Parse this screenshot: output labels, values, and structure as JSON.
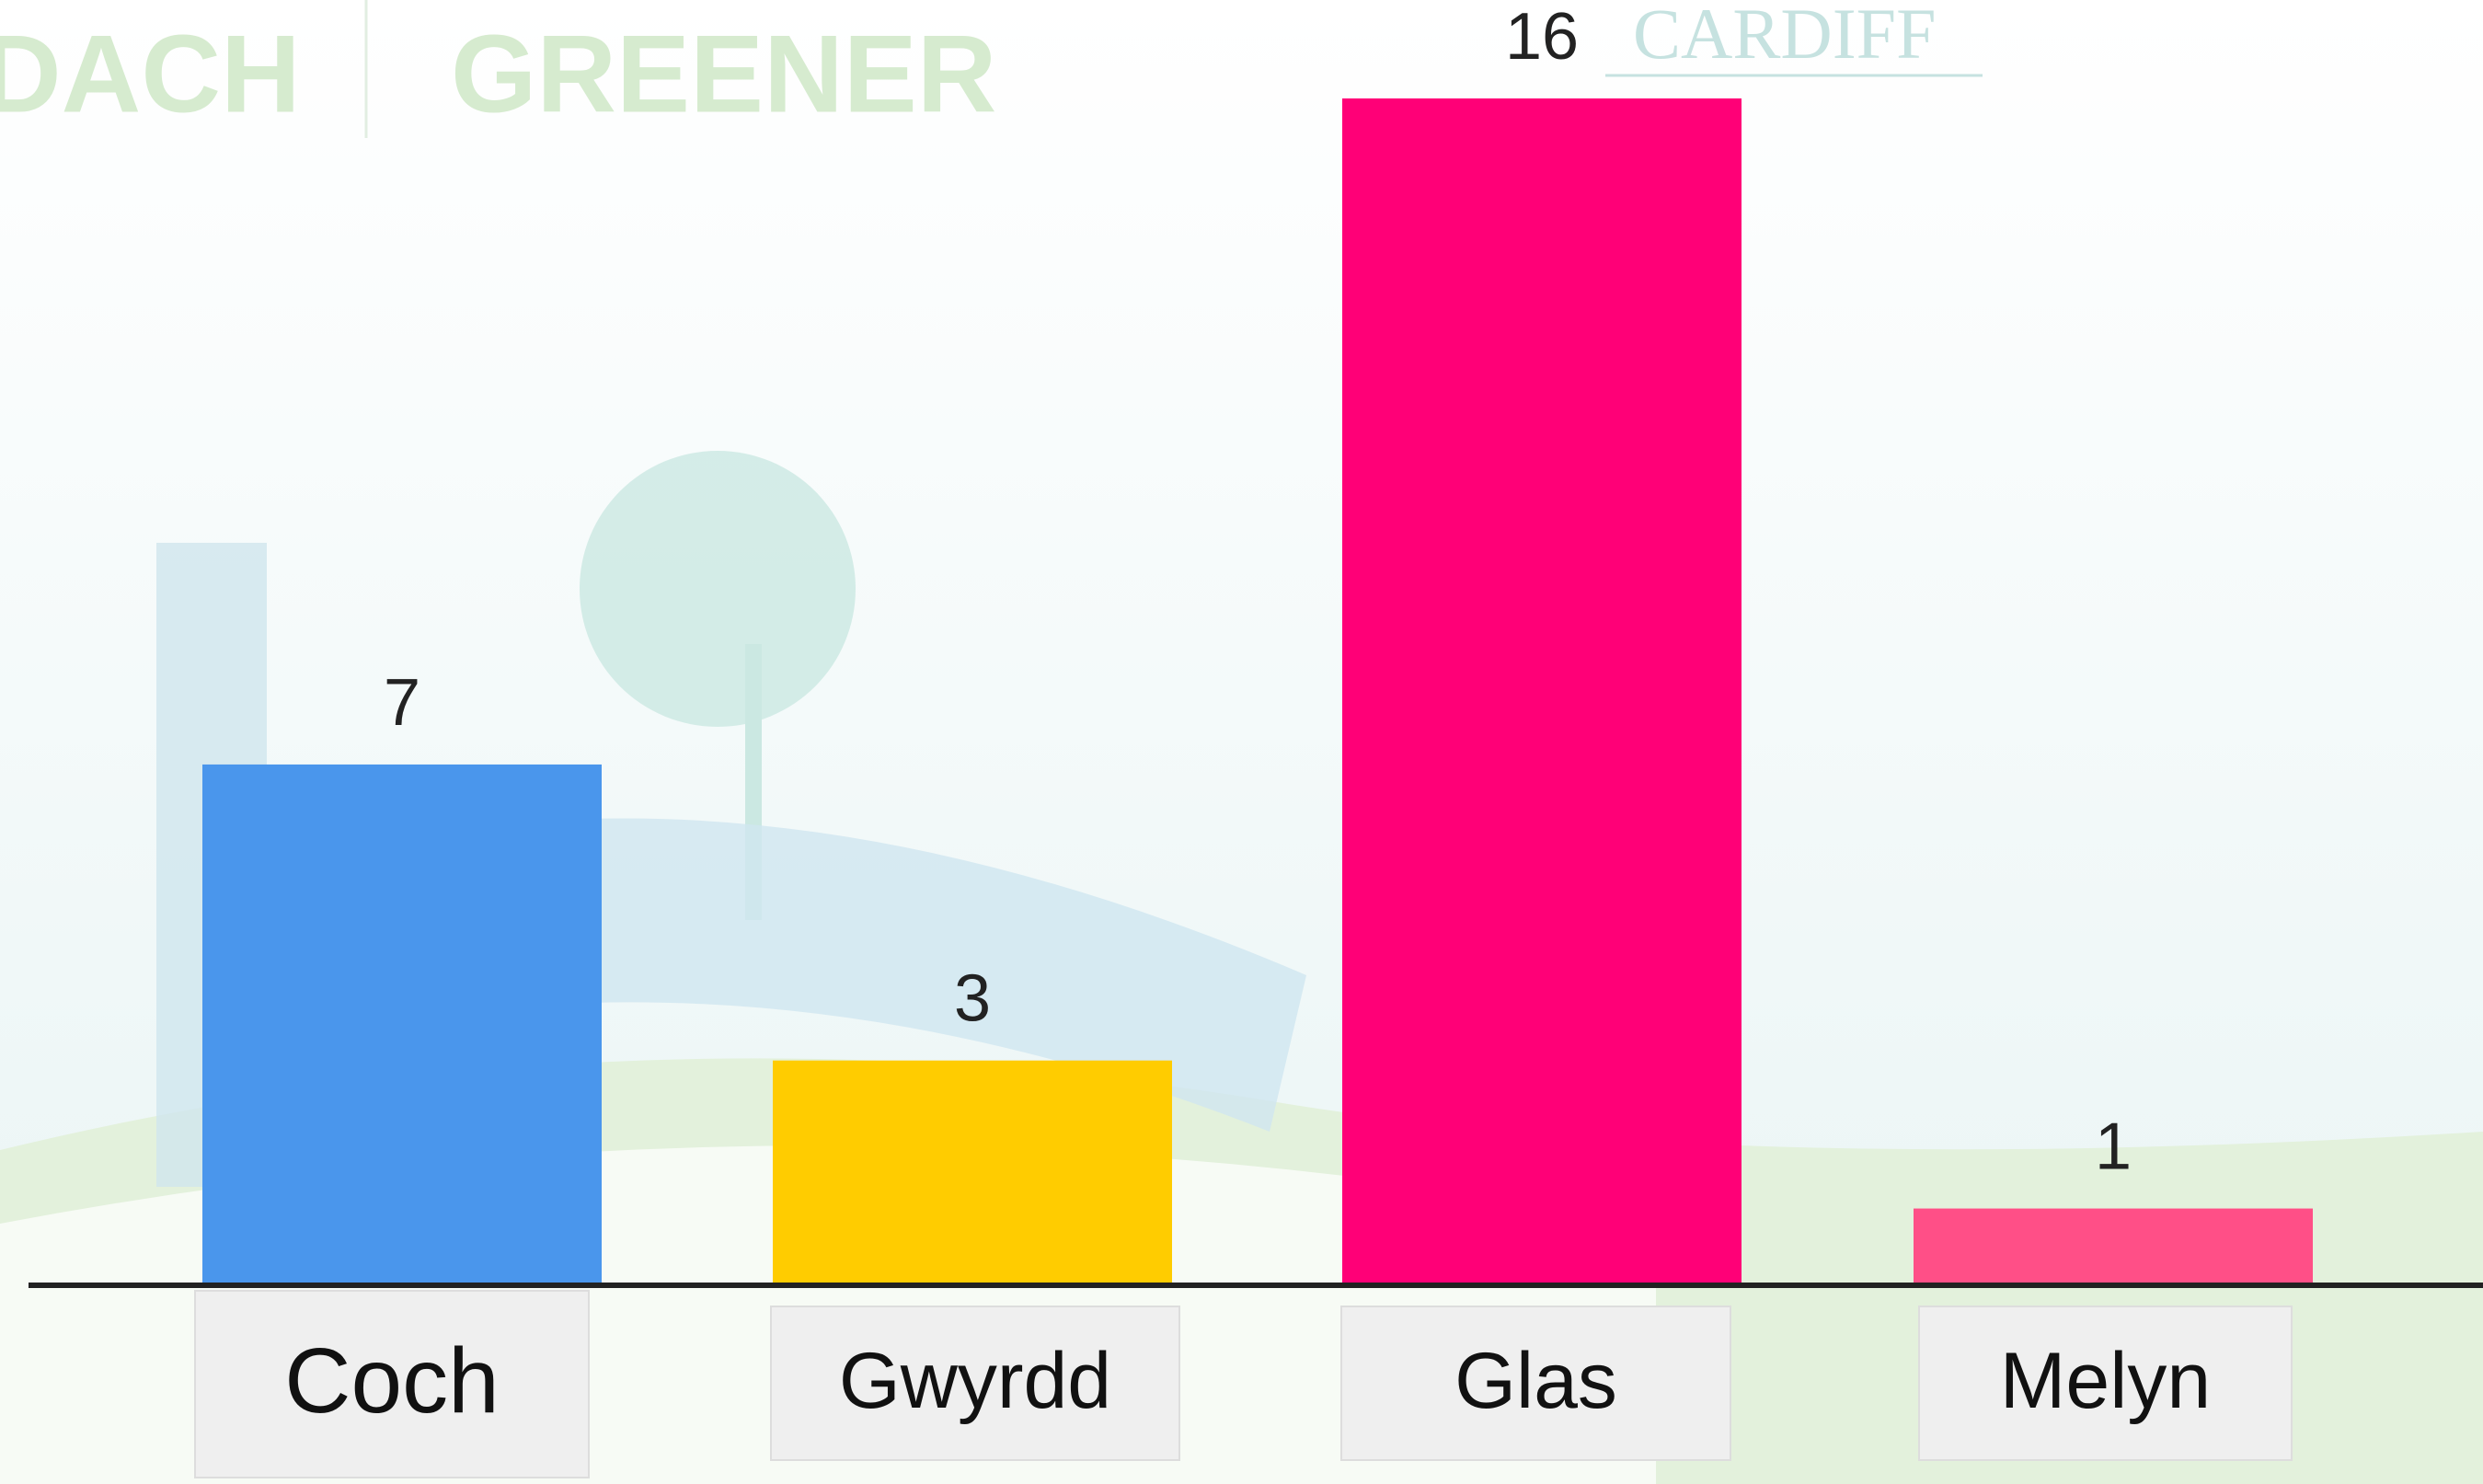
{
  "chart_data": {
    "type": "bar",
    "categories": [
      "Coch",
      "Gwyrdd",
      "Glas",
      "Melyn"
    ],
    "values": [
      7,
      3,
      16,
      1
    ],
    "colors": [
      "#4a96ec",
      "#ffcc00",
      "#ff0077",
      "#ff4f87"
    ],
    "background_text": [
      "DACH",
      "GREENER",
      "CARDIFF"
    ]
  }
}
